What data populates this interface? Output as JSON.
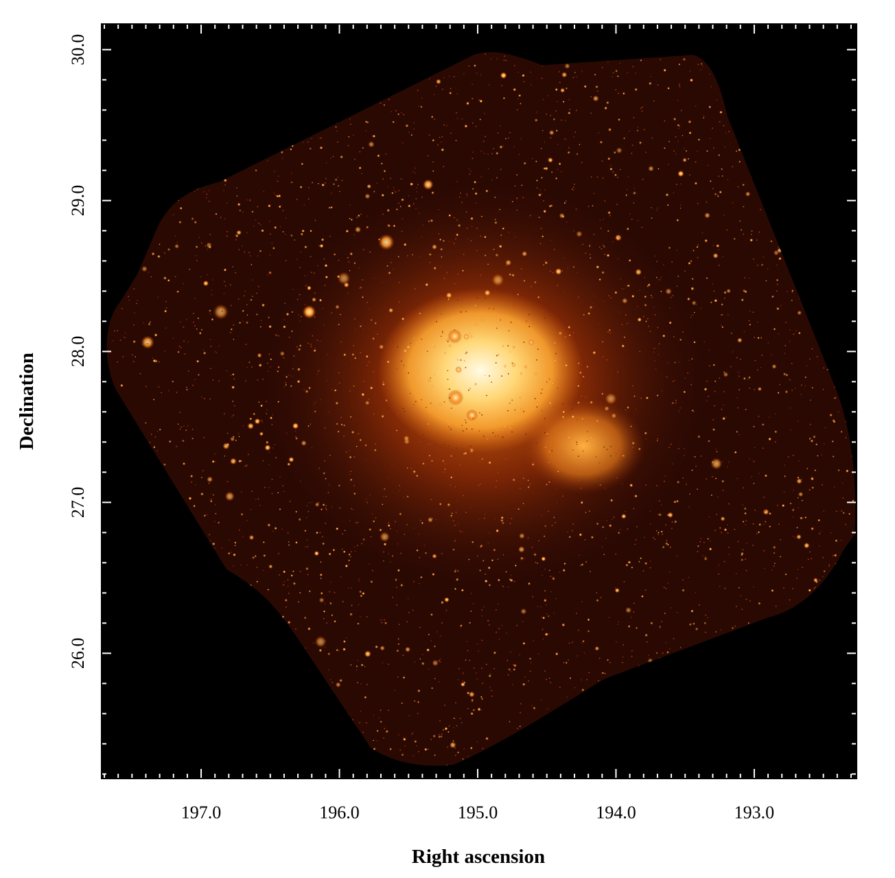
{
  "chart_data": {
    "type": "image",
    "x_label": "Right ascension",
    "y_label": "Declination",
    "xlim": [
      197.72,
      192.26
    ],
    "ylim": [
      25.17,
      30.17
    ],
    "xticks": [
      {
        "value": 197,
        "label": "197.0"
      },
      {
        "value": 196,
        "label": "196.0"
      },
      {
        "value": 195,
        "label": "195.0"
      },
      {
        "value": 194,
        "label": "194.0"
      },
      {
        "value": 193,
        "label": "193.0"
      }
    ],
    "yticks": [
      {
        "value": 26,
        "label": "26.0"
      },
      {
        "value": 27,
        "label": "27.0"
      },
      {
        "value": 28,
        "label": "28.0"
      },
      {
        "value": 29,
        "label": "29.0"
      },
      {
        "value": 30,
        "label": "30.0"
      }
    ]
  }
}
